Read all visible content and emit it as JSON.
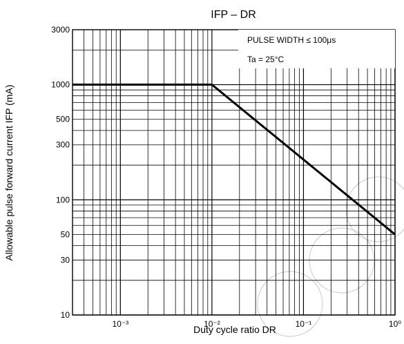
{
  "chart_data": {
    "type": "line",
    "title_main": "IFP – DR",
    "xlabel": "Duty cycle ratio DR",
    "ylabel": "Allowable pulse forward current IFP (mA)",
    "x_scale": "log",
    "y_scale": "log",
    "xlim": [
      0.0003,
      1
    ],
    "ylim": [
      10,
      3000
    ],
    "x_ticks": [
      {
        "value": 0.001,
        "label": "10⁻³"
      },
      {
        "value": 0.01,
        "label": "10⁻²"
      },
      {
        "value": 0.1,
        "label": "10⁻¹"
      },
      {
        "value": 1,
        "label": "10⁰"
      }
    ],
    "y_ticks": [
      {
        "value": 10,
        "label": "10"
      },
      {
        "value": 30,
        "label": "30"
      },
      {
        "value": 50,
        "label": "50"
      },
      {
        "value": 100,
        "label": "100"
      },
      {
        "value": 300,
        "label": "300"
      },
      {
        "value": 500,
        "label": "500"
      },
      {
        "value": 1000,
        "label": "1000"
      },
      {
        "value": 3000,
        "label": "3000"
      }
    ],
    "grid": true,
    "annotations": [
      "PULSE WIDTH ≤ 100μs",
      "Ta = 25°C"
    ],
    "series": [
      {
        "x": [
          0.0003,
          0.01,
          1
        ],
        "y": [
          1000,
          1000,
          50
        ]
      }
    ],
    "colors": {
      "line": "#000000",
      "grid": "#000000",
      "watermark": "#c8c8c8"
    }
  }
}
